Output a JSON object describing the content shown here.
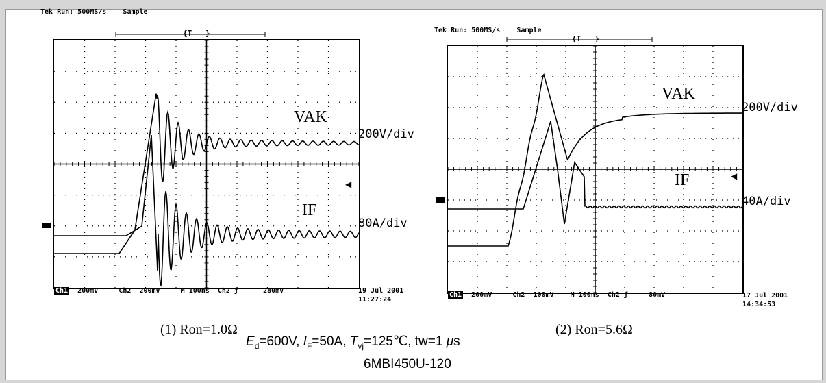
{
  "chart_data": [
    {
      "type": "line",
      "caption": "(1)  Ron=1.0Ω",
      "header": {
        "left": "Tek Run: 500MS/s",
        "mode": "Sample",
        "trigger": "T"
      },
      "series": [
        {
          "name": "VAK",
          "scale": "200V/div"
        },
        {
          "name": "IF",
          "scale": "80A/div"
        }
      ],
      "footer": {
        "ch1": "Ch1",
        "ch1_scale": "200mV",
        "ch2": "Ch2",
        "ch2_scale": "200mV",
        "timebase": "M  100ns",
        "trig": "Ch2 ƒ",
        "trig_level": "280mV"
      },
      "timestamp": {
        "date": "19 Jul 2001",
        "time": "11:27:24"
      },
      "grid": {
        "x_div": 10,
        "y_div": 8
      }
    },
    {
      "type": "line",
      "caption": "(2)  Ron=5.6Ω",
      "header": {
        "left": "Tek Run: 500MS/s",
        "mode": "Sample",
        "trigger": "T"
      },
      "series": [
        {
          "name": "VAK",
          "scale": "200V/div"
        },
        {
          "name": "IF",
          "scale": "40A/div"
        }
      ],
      "footer": {
        "ch1": "Ch1",
        "ch1_scale": "200mV",
        "ch2": "Ch2",
        "ch2_scale": "100mV",
        "timebase": "M  100ns",
        "trig": "Ch2 ƒ",
        "trig_level": "80mV"
      },
      "timestamp": {
        "date": "17 Jul 2001",
        "time": "14:34:53"
      },
      "grid": {
        "x_div": 10,
        "y_div": 8
      }
    }
  ],
  "conditions_parts": [
    "E",
    "d",
    "=600V,  ",
    "I",
    "F",
    "=50A,  ",
    "T",
    "vj",
    "=125℃, tw=1 ",
    "μ",
    "s"
  ],
  "model": "6MBI450U-120"
}
